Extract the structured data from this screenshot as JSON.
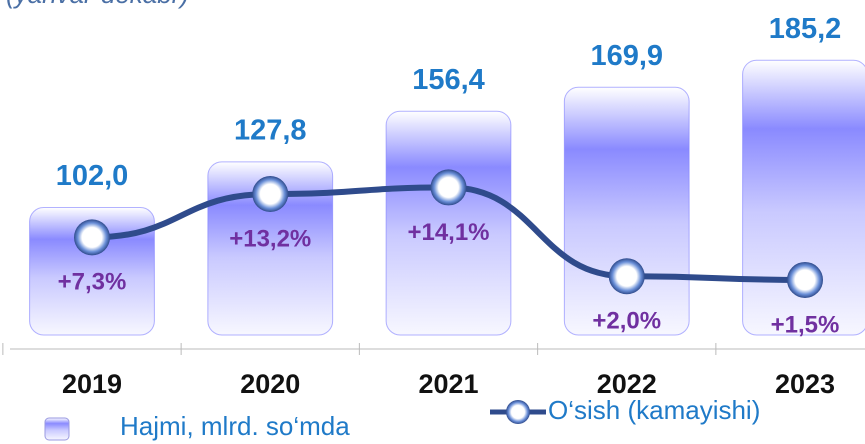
{
  "chart_data": {
    "type": "bar",
    "subtitle": "(yanvar-dekabr)",
    "categories": [
      "2019",
      "2020",
      "2021",
      "2022",
      "2023"
    ],
    "ylim": [
      30,
      200
    ],
    "y2lim": [
      -6,
      35
    ],
    "series": [
      {
        "name": "Hajmi, mlrd. so‘mda",
        "type": "bar",
        "color": "#7f7fff",
        "values": [
          102.0,
          127.8,
          156.4,
          169.9,
          185.2
        ],
        "value_labels": [
          "102,0",
          "127,8",
          "156,4",
          "169,9",
          "185,2"
        ]
      },
      {
        "name": "O‘sish (kamayishi)",
        "type": "line",
        "axis": "y2",
        "color": "#2f4b8c",
        "values": [
          7.3,
          13.2,
          14.1,
          2.0,
          1.5
        ],
        "value_labels": [
          "+7,3%",
          "+13,2%",
          "+14,1%",
          "+2,0%",
          "+1,5%"
        ]
      }
    ]
  }
}
